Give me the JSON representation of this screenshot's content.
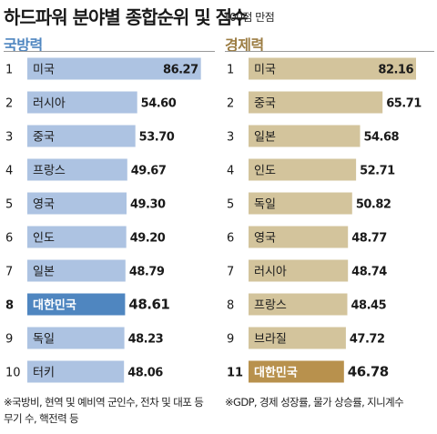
{
  "header": {
    "title": "하드파워 분야별 종합순위 및 점수",
    "subtitle": "100점 만점"
  },
  "chart_data": [
    {
      "type": "bar",
      "orientation": "horizontal",
      "title": "국방력",
      "ranks": [
        "1",
        "2",
        "3",
        "4",
        "5",
        "6",
        "7",
        "8",
        "9",
        "10"
      ],
      "categories": [
        "미국",
        "러시아",
        "중국",
        "프랑스",
        "영국",
        "인도",
        "일본",
        "대한민국",
        "독일",
        "터키"
      ],
      "values": [
        86.27,
        54.6,
        53.7,
        49.67,
        49.3,
        49.2,
        48.79,
        48.61,
        48.23,
        48.06
      ],
      "value_labels": [
        "86.27",
        "54.60",
        "53.70",
        "49.67",
        "49.30",
        "49.20",
        "48.79",
        "48.61",
        "48.23",
        "48.06"
      ],
      "highlight": "대한민국",
      "xlim": [
        0,
        100
      ],
      "colors": {
        "bar": "#adc3e2",
        "highlight": "#4f86c0",
        "text": "#1a1a1a",
        "highlight_text": "#ffffff"
      },
      "footnote": "※국방비, 현역 및 예비역 군인수, 전차 및 대포 등 무기 수, 핵전력 등"
    },
    {
      "type": "bar",
      "orientation": "horizontal",
      "title": "경제력",
      "ranks": [
        "1",
        "2",
        "3",
        "4",
        "5",
        "6",
        "7",
        "8",
        "9",
        "11"
      ],
      "categories": [
        "미국",
        "중국",
        "일본",
        "인도",
        "독일",
        "영국",
        "러시아",
        "프랑스",
        "브라질",
        "대한민국"
      ],
      "values": [
        82.16,
        65.71,
        54.68,
        52.71,
        50.82,
        48.77,
        48.74,
        48.45,
        47.72,
        46.78
      ],
      "value_labels": [
        "82.16",
        "65.71",
        "54.68",
        "52.71",
        "50.82",
        "48.77",
        "48.74",
        "48.45",
        "47.72",
        "46.78"
      ],
      "highlight": "대한민국",
      "xlim": [
        0,
        100
      ],
      "colors": {
        "bar": "#d3c49c",
        "highlight": "#b8914d",
        "text": "#1a1a1a",
        "highlight_text": "#ffffff"
      },
      "footnote": "※GDP, 경제 성장률, 물가 상승률, 지니계수"
    }
  ]
}
